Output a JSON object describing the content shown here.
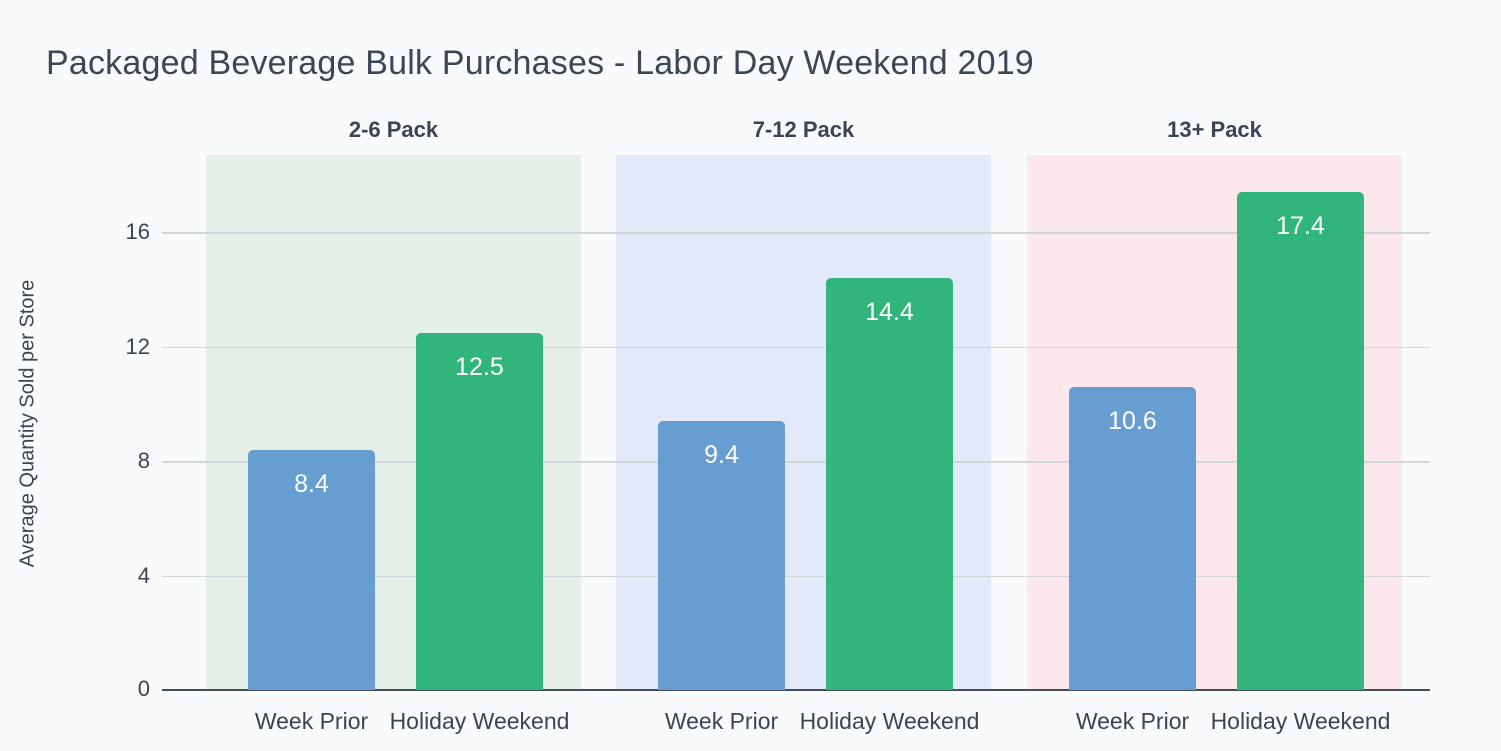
{
  "chart_data": {
    "type": "bar",
    "title": "Packaged Beverage Bulk Purchases - Labor Day Weekend 2019",
    "xlabel": "",
    "ylabel": "Average Quantity Sold per Store",
    "ylim": [
      0,
      18.7
    ],
    "yticks": [
      0,
      4,
      8,
      12,
      16
    ],
    "grid": true,
    "legend_position": "none",
    "categories": [
      "Week Prior",
      "Holiday Weekend"
    ],
    "series_colors": [
      "#689dd1",
      "#31b57c"
    ],
    "facets": [
      {
        "label": "2-6 Pack",
        "bg": "#e3efe7",
        "values": [
          8.4,
          12.5
        ]
      },
      {
        "label": "7-12 Pack",
        "bg": "#e2e9f9",
        "values": [
          9.4,
          14.4
        ]
      },
      {
        "label": "13+ Pack",
        "bg": "#fbe7ec",
        "values": [
          10.6,
          17.4
        ]
      }
    ]
  },
  "colors": {
    "background": "#f8fafc",
    "title_text": "#3d4754",
    "axis_text": "#3b4552",
    "gridline": "#d1d6db",
    "baseline": "#444e58",
    "bar_label_text": "#ffffff"
  }
}
